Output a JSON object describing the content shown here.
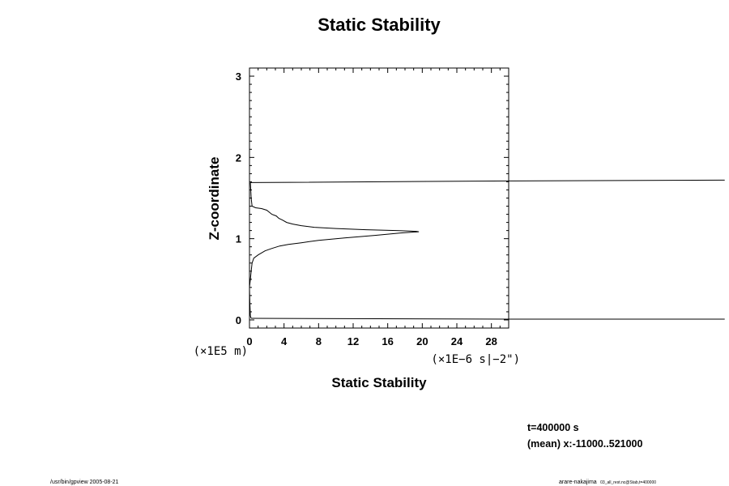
{
  "chart_data": {
    "type": "line",
    "title": "Static Stability",
    "xlabel": "Static Stability",
    "ylabel": "Z-coordinate",
    "x_units": "(×1E−6 s|−2\")",
    "y_units": "(×1E5 m)",
    "xlim": [
      0,
      30
    ],
    "ylim": [
      -0.1,
      3.1
    ],
    "x_ticks": [
      0,
      4,
      8,
      12,
      16,
      20,
      24,
      28
    ],
    "y_ticks": [
      0,
      1,
      2,
      3
    ],
    "grid": false,
    "series": [
      {
        "x": [
          0.2,
          0.1,
          0.05,
          0.0,
          0.1,
          0.2,
          0.3,
          0.5,
          1.0,
          1.8,
          2.6,
          3.5,
          4.5,
          6.0,
          8.0,
          11.0,
          14.5,
          17.5,
          19.6,
          19.3,
          17.0,
          13.5,
          10.0,
          7.5,
          6.0,
          5.0,
          4.3,
          3.8,
          3.4,
          3.1,
          2.6,
          2.0,
          1.4,
          0.7,
          0.3,
          0.2,
          0.15,
          0.1
        ],
        "y": [
          0.02,
          0.05,
          0.2,
          0.4,
          0.5,
          0.6,
          0.7,
          0.76,
          0.8,
          0.85,
          0.88,
          0.91,
          0.93,
          0.95,
          0.98,
          1.01,
          1.04,
          1.07,
          1.085,
          1.09,
          1.1,
          1.11,
          1.125,
          1.14,
          1.16,
          1.18,
          1.2,
          1.23,
          1.25,
          1.28,
          1.3,
          1.35,
          1.37,
          1.38,
          1.4,
          1.5,
          1.6,
          1.69
        ]
      },
      {
        "x": [
          0.2,
          30,
          55
        ],
        "y": [
          0.02,
          0.01,
          0.01
        ]
      },
      {
        "x": [
          0.1,
          30,
          55
        ],
        "y": [
          1.69,
          1.71,
          1.72
        ]
      }
    ]
  },
  "info": {
    "time": "t=400000 s",
    "mean_range": "(mean) x:-11000..521000"
  },
  "footer": {
    "left": "/usr/bin/gpview 2005-08-21",
    "right_main": "arare-nakajima",
    "right_sub": "03_all_rest.nc@Stab,t=400000"
  }
}
